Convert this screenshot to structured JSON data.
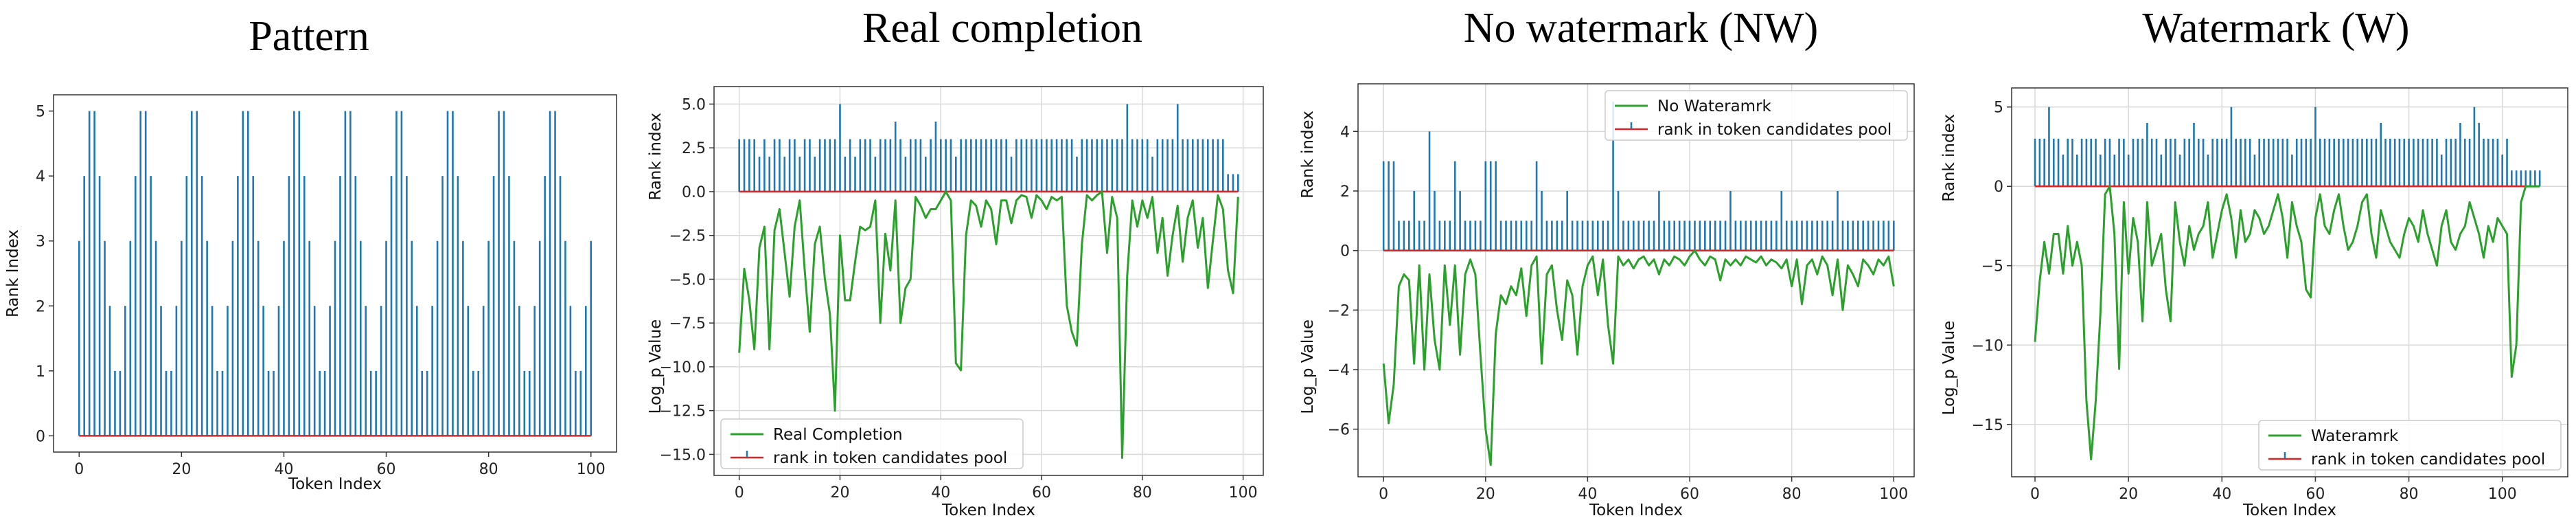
{
  "colors": {
    "stem": "#1f77b4",
    "baseline": "#d62728",
    "logp": "#2ca02c",
    "grid": "#d9d9d9",
    "frame": "#333333"
  },
  "chart_data": [
    {
      "id": "pattern",
      "type": "stem",
      "title": "Pattern",
      "xlabel": "Token Index",
      "ylabel": "Rank Index",
      "xlim": [
        -5,
        105
      ],
      "ylim": [
        -0.25,
        5.25
      ],
      "xticks": [
        0,
        20,
        40,
        60,
        80,
        100
      ],
      "yticks": [
        0,
        1,
        2,
        3,
        4,
        5
      ],
      "grid": false,
      "stems": [
        3,
        4,
        5,
        5,
        4,
        3,
        2,
        1,
        1,
        2,
        3,
        4,
        5,
        5,
        4,
        3,
        2,
        1,
        1,
        2,
        3,
        4,
        5,
        5,
        4,
        3,
        2,
        1,
        1,
        2,
        3,
        4,
        5,
        5,
        4,
        3,
        2,
        1,
        1,
        2,
        3,
        4,
        5,
        5,
        4,
        3,
        2,
        1,
        1,
        2,
        3,
        4,
        5,
        5,
        4,
        3,
        2,
        1,
        1,
        2,
        3,
        4,
        5,
        5,
        4,
        3,
        2,
        1,
        1,
        2,
        3,
        4,
        5,
        5,
        4,
        3,
        2,
        1,
        1,
        2,
        3,
        4,
        5,
        5,
        4,
        3,
        2,
        1,
        1,
        2,
        3,
        4,
        5,
        5,
        4,
        3,
        2,
        1,
        1,
        2,
        3
      ],
      "legend": null
    },
    {
      "id": "real",
      "type": "stem+line",
      "title": "Real completion",
      "xlabel": "Token Index",
      "ylabel_top": "Rank index",
      "ylabel_bottom": "Log_p Value",
      "xlim": [
        -5,
        104
      ],
      "ylim": [
        -16.2,
        6.0
      ],
      "xticks": [
        0,
        20,
        40,
        60,
        80,
        100
      ],
      "yticks": [
        5.0,
        2.5,
        0.0,
        -2.5,
        -5.0,
        -7.5,
        -10.0,
        -12.5,
        -15.0
      ],
      "ytick_labels": [
        "5.0",
        "2.5",
        "0.0",
        "−2.5",
        "−5.0",
        "−7.5",
        "−10.0",
        "−12.5",
        "−15.0"
      ],
      "grid": true,
      "stems": [
        3,
        3,
        3,
        3,
        2,
        3,
        2,
        3,
        3,
        2,
        3,
        3,
        2,
        3,
        3,
        2,
        3,
        3,
        3,
        3,
        5,
        2,
        3,
        2,
        3,
        3,
        3,
        2,
        3,
        3,
        3,
        4,
        3,
        2,
        3,
        3,
        3,
        2,
        3,
        4,
        3,
        3,
        3,
        2,
        3,
        3,
        3,
        3,
        3,
        3,
        3,
        3,
        3,
        3,
        2,
        3,
        3,
        3,
        3,
        3,
        3,
        3,
        3,
        3,
        3,
        3,
        3,
        2,
        3,
        3,
        3,
        3,
        3,
        3,
        3,
        3,
        3,
        5,
        3,
        3,
        3,
        3,
        2,
        3,
        3,
        3,
        3,
        5,
        3,
        3,
        3,
        3,
        3,
        3,
        3,
        3,
        3,
        1,
        1,
        1
      ],
      "line_name": "Real Completion",
      "line": [
        -9.2,
        -4.4,
        -6.2,
        -9.0,
        -3.2,
        -2.0,
        -9.0,
        -2.2,
        -1.0,
        -3.5,
        -6.0,
        -2.0,
        -0.5,
        -4.5,
        -8.0,
        -3.0,
        -2.0,
        -5.0,
        -7.0,
        -12.5,
        -2.5,
        -6.2,
        -6.2,
        -4.0,
        -2.0,
        -2.2,
        -2.0,
        -0.5,
        -7.5,
        -2.4,
        -4.5,
        -0.5,
        -7.5,
        -5.5,
        -5.0,
        -0.3,
        -0.8,
        -1.5,
        -1.0,
        -1.0,
        -0.5,
        0.0,
        -0.5,
        -9.8,
        -10.2,
        -2.5,
        -0.5,
        -0.8,
        -2.0,
        -0.5,
        -1.0,
        -3.0,
        -0.5,
        -0.5,
        -1.8,
        -0.5,
        -0.2,
        -0.3,
        -1.5,
        -0.2,
        -0.5,
        -1.0,
        -0.3,
        -0.5,
        -0.3,
        -6.5,
        -8.0,
        -8.8,
        -3.0,
        -0.2,
        -0.5,
        -0.2,
        0.0,
        -3.5,
        -0.3,
        -1.5,
        -15.2,
        -4.8,
        -0.5,
        -2.0,
        -0.5,
        -1.5,
        -0.3,
        -3.5,
        -1.5,
        -4.8,
        -2.5,
        -0.8,
        -4.0,
        -1.5,
        -0.5,
        -3.2,
        -1.5,
        -5.5,
        -2.8,
        -0.2,
        -1.0,
        -4.5,
        -5.8,
        -0.3
      ],
      "legend": {
        "position": "lower-left",
        "items": [
          "Real Completion",
          "rank in token candidates pool"
        ]
      }
    },
    {
      "id": "nw",
      "type": "stem+line",
      "title": "No watermark (NW)",
      "xlabel": "Token Index",
      "ylabel_top": "Rank index",
      "ylabel_bottom": "Log_p Value",
      "xlim": [
        -5,
        104
      ],
      "ylim": [
        -7.6,
        5.6
      ],
      "xticks": [
        0,
        20,
        40,
        60,
        80,
        100
      ],
      "yticks": [
        4,
        2,
        0,
        -2,
        -4,
        -6
      ],
      "ytick_labels": [
        "4",
        "2",
        "0",
        "−2",
        "−4",
        "−6"
      ],
      "grid": true,
      "stems": [
        3,
        3,
        3,
        1,
        1,
        1,
        2,
        1,
        1,
        4,
        2,
        1,
        1,
        1,
        3,
        2,
        1,
        1,
        1,
        1,
        3,
        3,
        3,
        1,
        1,
        1,
        1,
        1,
        1,
        1,
        3,
        2,
        1,
        1,
        1,
        1,
        2,
        1,
        1,
        1,
        1,
        1,
        1,
        1,
        1,
        5,
        2,
        1,
        1,
        1,
        1,
        1,
        1,
        1,
        2,
        1,
        1,
        1,
        1,
        1,
        1,
        1,
        1,
        1,
        1,
        1,
        1,
        1,
        2,
        1,
        1,
        1,
        1,
        1,
        1,
        1,
        1,
        1,
        2,
        1,
        1,
        1,
        1,
        1,
        1,
        1,
        1,
        1,
        1,
        2,
        1,
        1,
        1,
        1,
        1,
        1,
        1,
        1,
        1,
        1,
        1
      ],
      "line_name": "No Wateramrk",
      "line": [
        -3.8,
        -5.8,
        -4.5,
        -1.2,
        -0.8,
        -1.0,
        -3.8,
        -0.5,
        -4.0,
        -0.8,
        -3.0,
        -4.0,
        -0.5,
        -2.5,
        -0.5,
        -3.5,
        -0.8,
        -0.3,
        -0.8,
        -3.5,
        -6.0,
        -7.2,
        -2.8,
        -1.5,
        -1.8,
        -1.2,
        -1.5,
        -0.6,
        -2.2,
        -0.5,
        -0.2,
        -3.8,
        -0.8,
        -0.5,
        -2.0,
        -3.0,
        -1.0,
        -1.5,
        -3.5,
        -1.2,
        -0.5,
        -0.2,
        -1.5,
        -0.3,
        -2.5,
        -3.8,
        -0.2,
        -0.5,
        -0.3,
        -0.6,
        -0.3,
        -0.2,
        -0.5,
        -0.3,
        -0.8,
        -0.3,
        -0.5,
        -0.2,
        -0.3,
        -0.5,
        -0.2,
        0.0,
        -0.3,
        -0.5,
        -0.2,
        -0.3,
        -1.0,
        -0.3,
        -0.5,
        -0.3,
        -0.5,
        -0.2,
        -0.3,
        -0.4,
        -0.2,
        -0.5,
        -0.3,
        -0.4,
        -0.6,
        -0.3,
        -1.2,
        -0.3,
        -1.8,
        -0.5,
        -0.3,
        -0.8,
        -0.2,
        -0.5,
        -1.5,
        -0.3,
        -2.0,
        -0.5,
        -0.8,
        -1.2,
        -0.3,
        -0.5,
        -0.8,
        -0.3,
        -0.5,
        -0.2,
        -1.2
      ],
      "legend": {
        "position": "top-right",
        "items": [
          "No Wateramrk",
          "rank in token candidates pool"
        ]
      }
    },
    {
      "id": "w",
      "type": "stem+line",
      "title": "Watermark (W)",
      "xlabel": "Token Index",
      "ylabel_top": "Rank index",
      "ylabel_bottom": "Log_p Value",
      "xlim": [
        -5,
        114
      ],
      "ylim": [
        -18.3,
        6.2
      ],
      "xticks": [
        0,
        20,
        40,
        60,
        80,
        100
      ],
      "yticks": [
        5,
        0,
        -5,
        -10,
        -15
      ],
      "ytick_labels": [
        "5",
        "0",
        "−5",
        "−10",
        "−15"
      ],
      "grid": true,
      "stems": [
        3,
        3,
        3,
        5,
        3,
        3,
        2,
        3,
        3,
        2,
        3,
        3,
        3,
        3,
        2,
        3,
        3,
        2,
        3,
        3,
        2,
        3,
        3,
        3,
        4,
        3,
        3,
        2,
        3,
        3,
        3,
        2,
        3,
        3,
        4,
        3,
        3,
        2,
        3,
        3,
        3,
        3,
        5,
        3,
        3,
        3,
        3,
        2,
        3,
        3,
        3,
        3,
        3,
        3,
        3,
        2,
        3,
        3,
        3,
        3,
        5,
        3,
        3,
        3,
        3,
        3,
        3,
        3,
        3,
        3,
        3,
        3,
        3,
        3,
        4,
        3,
        3,
        3,
        3,
        3,
        3,
        3,
        3,
        3,
        3,
        3,
        3,
        2,
        3,
        3,
        3,
        4,
        3,
        3,
        5,
        4,
        3,
        3,
        3,
        3,
        2,
        3,
        1,
        1,
        1,
        1,
        1,
        1,
        1
      ],
      "line_name": "Wateramrk",
      "line": [
        -9.8,
        -6.0,
        -3.5,
        -5.5,
        -3.0,
        -3.0,
        -5.5,
        -2.5,
        -5.0,
        -3.5,
        -5.0,
        -13.5,
        -17.2,
        -13.5,
        -8.0,
        -0.5,
        0.0,
        -3.0,
        -11.5,
        -1.0,
        -5.5,
        -2.0,
        -3.5,
        -8.5,
        -1.0,
        -5.0,
        -4.0,
        -3.0,
        -6.5,
        -8.5,
        -1.0,
        -3.5,
        -5.0,
        -2.5,
        -4.0,
        -3.0,
        -2.5,
        -1.0,
        -4.5,
        -3.0,
        -1.5,
        -0.5,
        -2.0,
        -4.5,
        -1.5,
        -3.5,
        -3.0,
        -1.5,
        -2.0,
        -3.0,
        -2.5,
        -1.5,
        -0.5,
        -2.0,
        -4.5,
        -1.0,
        -2.5,
        -3.5,
        -6.5,
        -7.0,
        -2.0,
        -0.5,
        -2.5,
        -3.0,
        -1.5,
        -0.5,
        -2.5,
        -4.0,
        -3.5,
        -2.5,
        -1.0,
        -0.5,
        -3.0,
        -4.5,
        -1.5,
        -2.5,
        -3.5,
        -4.0,
        -4.5,
        -3.0,
        -2.0,
        -2.5,
        -3.5,
        -1.5,
        -3.0,
        -4.0,
        -5.0,
        -2.5,
        -1.5,
        -3.5,
        -4.0,
        -3.0,
        -2.5,
        -1.0,
        -2.0,
        -3.0,
        -4.5,
        -2.5,
        -3.5,
        -2.0,
        -2.5,
        -3.0,
        -12.0,
        -10.0,
        -1.0,
        0.0,
        0.0,
        0.0,
        0.0
      ],
      "legend": {
        "position": "lower-right",
        "items": [
          "Wateramrk",
          "rank in token candidates pool"
        ]
      }
    }
  ]
}
